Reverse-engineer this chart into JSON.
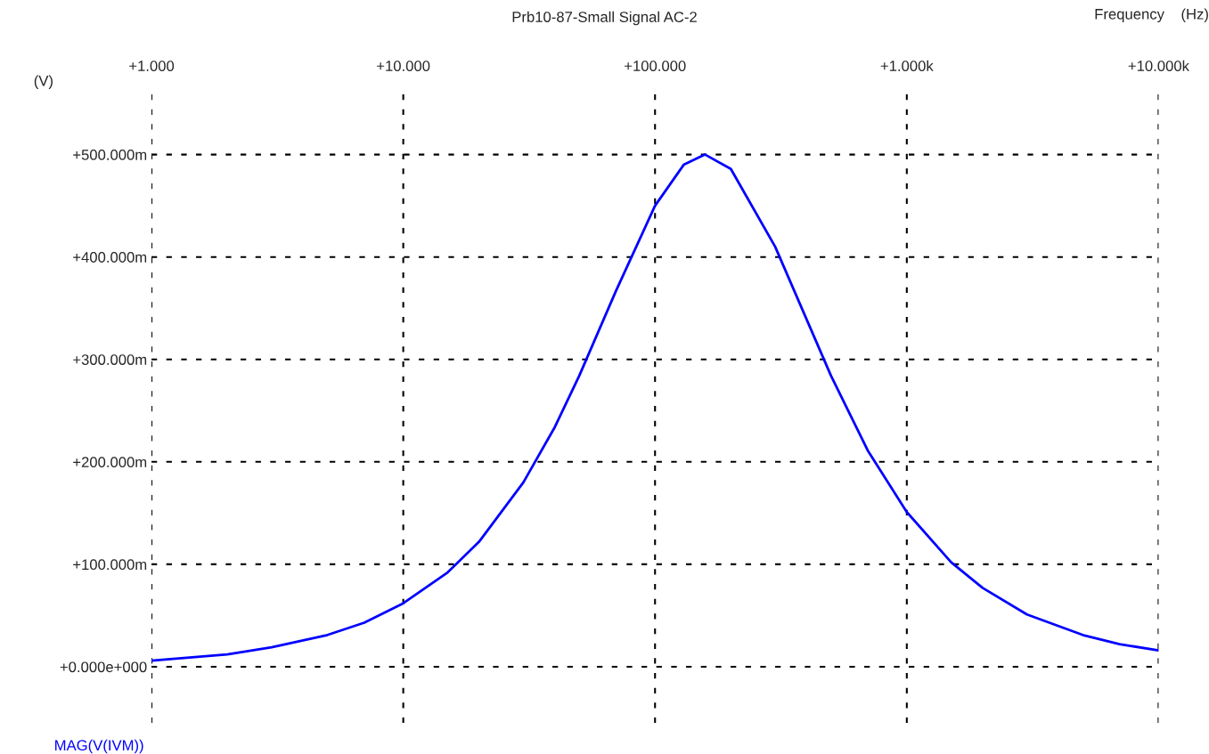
{
  "chart_data": {
    "type": "line",
    "title": "Prb10-87-Small Signal AC-2",
    "xlabel": "Frequency    (Hz)",
    "ylabel": "(V)",
    "log": "x",
    "xlim": [
      1,
      10000
    ],
    "ylim": [
      -55,
      564
    ],
    "xticks": [
      {
        "value": 1,
        "label": "+1.000"
      },
      {
        "value": 10,
        "label": "+10.000"
      },
      {
        "value": 100,
        "label": "+100.000"
      },
      {
        "value": 1000,
        "label": "+1.000k"
      },
      {
        "value": 10000,
        "label": "+10.000k"
      }
    ],
    "yticks": [
      {
        "value": 0,
        "label": "+0.000e+000"
      },
      {
        "value": 100,
        "label": "+100.000m"
      },
      {
        "value": 200,
        "label": "+200.000m"
      },
      {
        "value": 300,
        "label": "+300.000m"
      },
      {
        "value": 400,
        "label": "+400.000m"
      },
      {
        "value": 500,
        "label": "+500.000m"
      }
    ],
    "grid": true,
    "legend": "bottom left",
    "line_style": "solid",
    "series": [
      {
        "name": "MAG(V(IVM))",
        "color": "#0000ff",
        "x": [
          1,
          2,
          3,
          5,
          7,
          10,
          15,
          20,
          30,
          40,
          50,
          70,
          100,
          130,
          158,
          200,
          300,
          500,
          700,
          1000,
          1500,
          2000,
          3000,
          5000,
          7000,
          10000
        ],
        "values": [
          6,
          12,
          19,
          31,
          43,
          62,
          92,
          122,
          180,
          234,
          284,
          367,
          450,
          490,
          500,
          486,
          410,
          284,
          211,
          151,
          102,
          77,
          51,
          31,
          22,
          16
        ]
      }
    ]
  }
}
